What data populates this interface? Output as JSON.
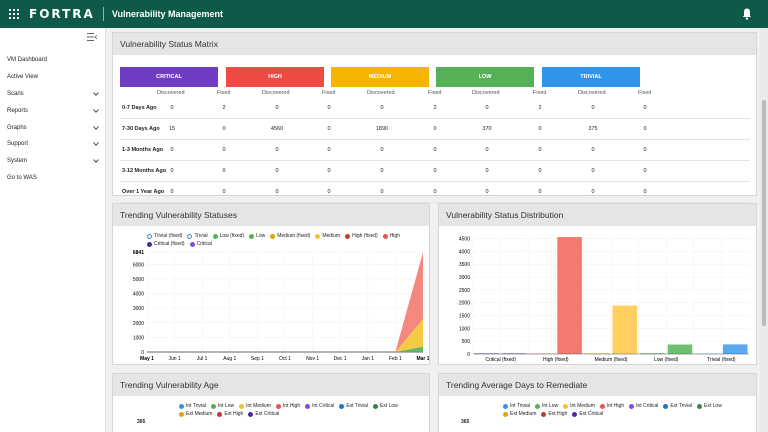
{
  "app": {
    "brand": "FORTRA",
    "title": "Vulnerability Management"
  },
  "sidebar": {
    "items": [
      {
        "label": "VM Dashboard",
        "expandable": false
      },
      {
        "label": "Active View",
        "expandable": false
      },
      {
        "label": "Scans",
        "expandable": true
      },
      {
        "label": "Reports",
        "expandable": true
      },
      {
        "label": "Graphs",
        "expandable": true
      },
      {
        "label": "Support",
        "expandable": true
      },
      {
        "label": "System",
        "expandable": true
      },
      {
        "label": "Go to WAS",
        "expandable": false
      }
    ]
  },
  "matrix": {
    "title": "Vulnerability Status Matrix",
    "severities": [
      {
        "label": "CRITICAL",
        "color": "#6f3cc4"
      },
      {
        "label": "HIGH",
        "color": "#ef4a43"
      },
      {
        "label": "MEDIUM",
        "color": "#f4b400"
      },
      {
        "label": "LOW",
        "color": "#55b058"
      },
      {
        "label": "TRIVIAL",
        "color": "#2f95ea"
      }
    ],
    "sub_discovered": "Discovered",
    "sub_fixed": "Fixed",
    "rows": [
      {
        "label": "0-7 Days Ago",
        "values": [
          "0",
          "2",
          "0",
          "0",
          "0",
          "2",
          "0",
          "2",
          "0",
          "0"
        ]
      },
      {
        "label": "7-30 Days Ago",
        "values": [
          "15",
          "0",
          "4560",
          "0",
          "1890",
          "0",
          "370",
          "0",
          "375",
          "0"
        ]
      },
      {
        "label": "1-3 Months Ago",
        "values": [
          "0",
          "0",
          "0",
          "0",
          "0",
          "0",
          "0",
          "0",
          "0",
          "0"
        ]
      },
      {
        "label": "3-12 Months Ago",
        "values": [
          "0",
          "0",
          "0",
          "0",
          "0",
          "0",
          "0",
          "0",
          "0",
          "0"
        ]
      },
      {
        "label": "Over 1 Year Ago",
        "values": [
          "0",
          "0",
          "0",
          "0",
          "0",
          "0",
          "0",
          "0",
          "0",
          "0"
        ]
      }
    ]
  },
  "trending": {
    "title": "Trending Vulnerability Statuses",
    "legend": [
      {
        "label": "Trivial (fixed)",
        "color": "#3b8fd6",
        "open": true
      },
      {
        "label": "Trivial",
        "color": "#3b8fd6",
        "open": true
      },
      {
        "label": "Low (fixed)",
        "color": "#55b058",
        "open": false
      },
      {
        "label": "Low",
        "color": "#55b058",
        "open": false
      },
      {
        "label": "Medium (fixed)",
        "color": "#d9a800",
        "open": false
      },
      {
        "label": "Medium",
        "color": "#f4c430",
        "open": false
      },
      {
        "label": "High (fixed)",
        "color": "#c0392b",
        "open": false
      },
      {
        "label": "High",
        "color": "#ef5350",
        "open": false
      },
      {
        "label": "Critical (fixed)",
        "color": "#4b2aa0",
        "open": false
      },
      {
        "label": "Critical",
        "color": "#7d4fd6",
        "open": false
      }
    ]
  },
  "distribution": {
    "title": "Vulnerability Status Distribution"
  },
  "age": {
    "title": "Trending Vulnerability Age",
    "legend": [
      {
        "label": "Int Trivial",
        "color": "#2f95ea"
      },
      {
        "label": "Int Low",
        "color": "#55b058"
      },
      {
        "label": "Int Medium",
        "color": "#f4c430"
      },
      {
        "label": "Int High",
        "color": "#ef5350"
      },
      {
        "label": "Int Critical",
        "color": "#7d4fd6"
      },
      {
        "label": "Ext Trivial",
        "color": "#1b76c7"
      },
      {
        "label": "Ext Low",
        "color": "#2e8b3c"
      },
      {
        "label": "Ext Medium",
        "color": "#d9a800"
      },
      {
        "label": "Ext High",
        "color": "#c0392b"
      },
      {
        "label": "Ext Critical",
        "color": "#4b2aa0"
      }
    ],
    "ytop": "365"
  },
  "remediate": {
    "title": "Trending Average Days to Remediate",
    "legend": [
      {
        "label": "Int Trivial",
        "color": "#2f95ea"
      },
      {
        "label": "Int Low",
        "color": "#55b058"
      },
      {
        "label": "Int Medium",
        "color": "#f4c430"
      },
      {
        "label": "Int High",
        "color": "#ef5350"
      },
      {
        "label": "Int Critical",
        "color": "#7d4fd6"
      },
      {
        "label": "Ext Trivial",
        "color": "#1b76c7"
      },
      {
        "label": "Ext Low",
        "color": "#2e8b3c"
      },
      {
        "label": "Ext Medium",
        "color": "#d9a800"
      },
      {
        "label": "Ext High",
        "color": "#c0392b"
      },
      {
        "label": "Ext Critical",
        "color": "#4b2aa0"
      }
    ],
    "ytop": "365"
  },
  "chart_data": [
    {
      "type": "area",
      "x": [
        "May 1",
        "Jun 1",
        "Jul 1",
        "Aug 1",
        "Sep 1",
        "Oct 1",
        "Nov 1",
        "Dec 1",
        "Jan 1",
        "Feb 1",
        "Mar 1"
      ],
      "y_ticks": [
        "0",
        "1000",
        "2000",
        "3000",
        "4000",
        "5000",
        "6000",
        "6841"
      ],
      "ylim": [
        0,
        6841
      ],
      "series": [
        {
          "name": "Low",
          "color": "#55b058",
          "values": [
            0,
            0,
            0,
            0,
            0,
            0,
            0,
            0,
            0,
            0,
            370
          ]
        },
        {
          "name": "Medium",
          "color": "#f4c430",
          "values": [
            0,
            0,
            0,
            0,
            0,
            0,
            0,
            0,
            0,
            0,
            1890
          ]
        },
        {
          "name": "High",
          "color": "#f47a70",
          "values": [
            0,
            0,
            0,
            0,
            0,
            0,
            0,
            0,
            0,
            0,
            4560
          ]
        }
      ]
    },
    {
      "type": "bar",
      "categories": [
        "Critical (fixed)",
        "Critical",
        "High (fixed)",
        "High",
        "Medium (fixed)",
        "Medium",
        "Low (fixed)",
        "Low",
        "Trivial (fixed)",
        "Trivial"
      ],
      "tick_labels": [
        "Critical (fixed)",
        "High (fixed)",
        "Medium (fixed)",
        "Low (fixed)",
        "Trivial (fixed)"
      ],
      "values": [
        2,
        15,
        0,
        4560,
        2,
        1890,
        2,
        370,
        0,
        375
      ],
      "colors": [
        "#9b7fd6",
        "#9b7fd6",
        "#f47a70",
        "#f47a70",
        "#ffd060",
        "#ffd060",
        "#6cc070",
        "#6cc070",
        "#5aaaf0",
        "#5aaaf0"
      ],
      "y_ticks": [
        "0",
        "500",
        "1000",
        "1500",
        "2000",
        "2500",
        "3000",
        "3500",
        "4000",
        "4500"
      ],
      "ylim": [
        0,
        4600
      ]
    }
  ]
}
